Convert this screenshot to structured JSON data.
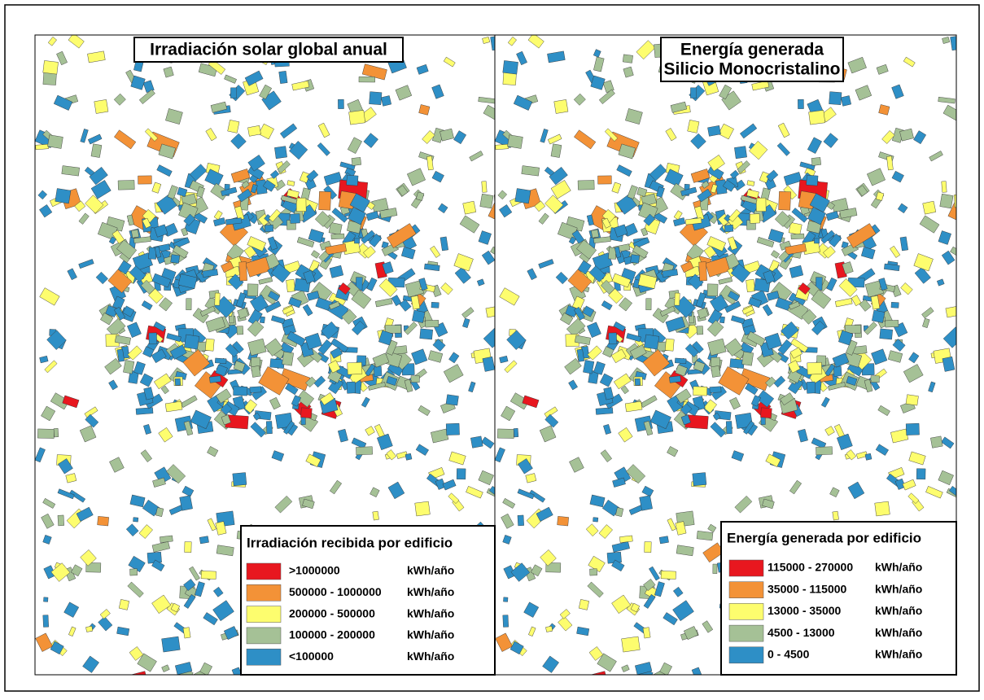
{
  "panels": [
    {
      "title": [
        "Irradiación solar global anual"
      ],
      "legend": {
        "title": "Irradiación recibida por edificio",
        "items": [
          {
            "label": ">1000000",
            "unit": "kWh/año",
            "color": "#e8171f"
          },
          {
            "label": "500000 - 1000000",
            "unit": "kWh/año",
            "color": "#f39237"
          },
          {
            "label": "200000 - 500000",
            "unit": "kWh/año",
            "color": "#fdfd6e"
          },
          {
            "label": "100000 - 200000",
            "unit": "kWh/año",
            "color": "#a5c196"
          },
          {
            "label": "<100000",
            "unit": "kWh/año",
            "color": "#2e8fc6"
          }
        ]
      }
    },
    {
      "title": [
        "Energía generada",
        "Silicio Monocristalino"
      ],
      "legend": {
        "title": "Energía generada por edificio",
        "items": [
          {
            "label": "115000 - 270000",
            "unit": "kWh/año",
            "color": "#e8171f"
          },
          {
            "label": "35000 - 115000",
            "unit": "kWh/año",
            "color": "#f39237"
          },
          {
            "label": "13000 - 35000",
            "unit": "kWh/año",
            "color": "#fdfd6e"
          },
          {
            "label": "4500 - 13000",
            "unit": "kWh/año",
            "color": "#a5c196"
          },
          {
            "label": "0 - 4500",
            "unit": "kWh/año",
            "color": "#2e8fc6"
          }
        ]
      }
    }
  ]
}
